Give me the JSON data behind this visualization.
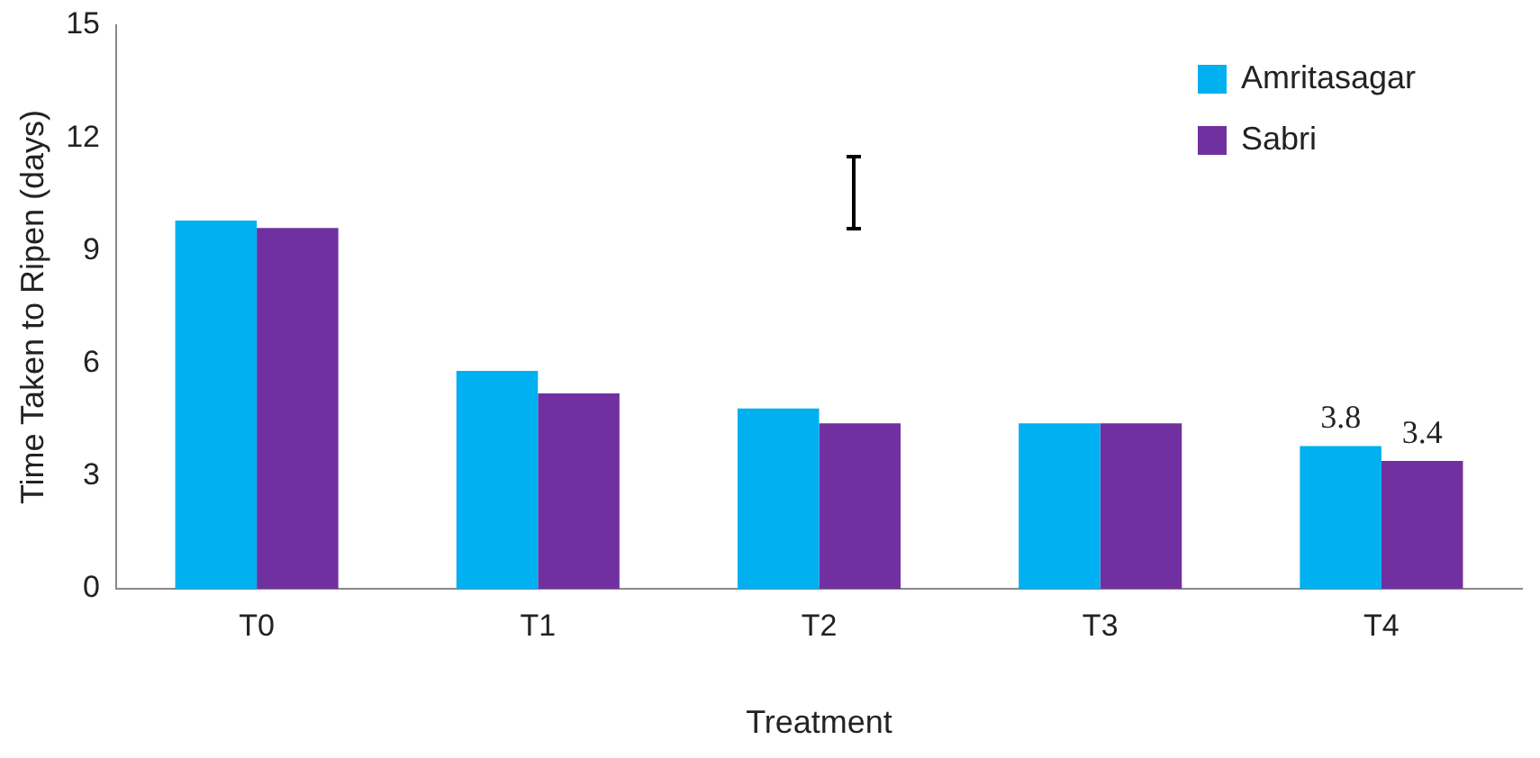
{
  "chart_data": {
    "type": "bar",
    "xlabel": "Treatment",
    "ylabel": "Time Taken to Ripen (days)",
    "categories": [
      "T0",
      "T1",
      "T2",
      "T3",
      "T4"
    ],
    "series": [
      {
        "name": "Amritasagar",
        "color": "#00b0f0",
        "values": [
          9.8,
          5.8,
          4.8,
          4.4,
          3.8
        ],
        "value_labels": [
          null,
          null,
          null,
          null,
          "3.8"
        ]
      },
      {
        "name": "Sabri",
        "color": "#7030a0",
        "values": [
          9.6,
          5.2,
          4.4,
          4.4,
          3.4
        ],
        "value_labels": [
          null,
          null,
          null,
          null,
          "3.4"
        ]
      }
    ],
    "ylim": [
      0,
      15
    ],
    "yticks": [
      0,
      3,
      6,
      9,
      12,
      15
    ],
    "grid": false,
    "legend": "top right"
  }
}
